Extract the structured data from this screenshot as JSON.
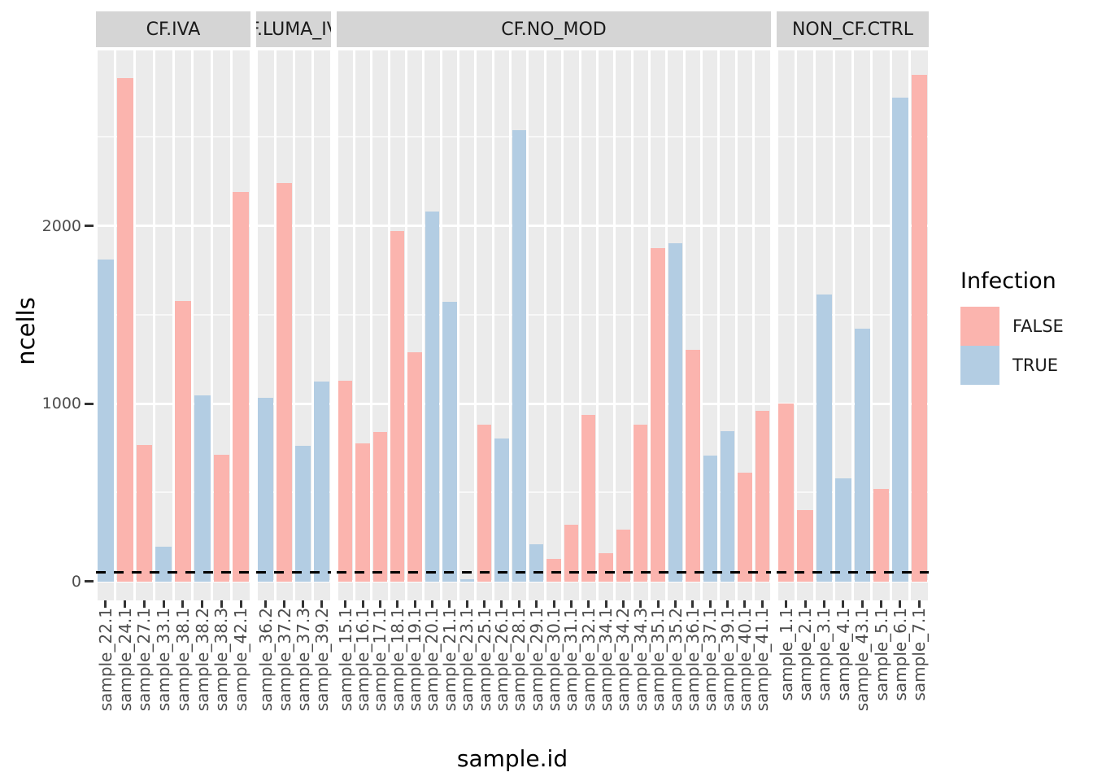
{
  "chart_data": {
    "type": "bar",
    "title": "",
    "xlabel": "sample.id",
    "ylabel": "ncells",
    "y_ticks": [
      0,
      1000,
      2000
    ],
    "ylim": [
      0,
      2990
    ],
    "grid": {
      "major": "white",
      "minor": "white-faint",
      "panel_background": "#ebebeb"
    },
    "threshold_line": {
      "y": 50,
      "style": "dashed",
      "color": "#000000"
    },
    "legend": {
      "title": "Infection",
      "position": "right",
      "entries": [
        {
          "label": "FALSE",
          "color": "#FBB4AE"
        },
        {
          "label": "TRUE",
          "color": "#B3CDE3"
        }
      ]
    },
    "facets": [
      {
        "label": "CF.IVA",
        "bars": [
          {
            "x": "sample_22.1",
            "y": 1810,
            "infection": "TRUE"
          },
          {
            "x": "sample_24.1",
            "y": 2830,
            "infection": "FALSE"
          },
          {
            "x": "sample_27.1",
            "y": 765,
            "infection": "FALSE"
          },
          {
            "x": "sample_33.1",
            "y": 195,
            "infection": "TRUE"
          },
          {
            "x": "sample_38.1",
            "y": 1575,
            "infection": "FALSE"
          },
          {
            "x": "sample_38.2",
            "y": 1045,
            "infection": "TRUE"
          },
          {
            "x": "sample_38.3",
            "y": 710,
            "infection": "FALSE"
          },
          {
            "x": "sample_42.1",
            "y": 2190,
            "infection": "FALSE"
          }
        ]
      },
      {
        "label": "CF.LUMA_IVA",
        "label_clipped_display": ".LUMA_I",
        "bars": [
          {
            "x": "sample_36.2",
            "y": 1030,
            "infection": "TRUE"
          },
          {
            "x": "sample_37.2",
            "y": 2240,
            "infection": "FALSE"
          },
          {
            "x": "sample_37.3",
            "y": 760,
            "infection": "TRUE"
          },
          {
            "x": "sample_39.2",
            "y": 1125,
            "infection": "TRUE"
          }
        ]
      },
      {
        "label": "CF.NO_MOD",
        "bars": [
          {
            "x": "sample_15.1",
            "y": 1130,
            "infection": "FALSE"
          },
          {
            "x": "sample_16.1",
            "y": 775,
            "infection": "FALSE"
          },
          {
            "x": "sample_17.1",
            "y": 840,
            "infection": "FALSE"
          },
          {
            "x": "sample_18.1",
            "y": 1970,
            "infection": "FALSE"
          },
          {
            "x": "sample_19.1",
            "y": 1290,
            "infection": "FALSE"
          },
          {
            "x": "sample_20.1",
            "y": 2080,
            "infection": "TRUE"
          },
          {
            "x": "sample_21.1",
            "y": 1570,
            "infection": "TRUE"
          },
          {
            "x": "sample_23.1",
            "y": 10,
            "infection": "TRUE"
          },
          {
            "x": "sample_25.1",
            "y": 880,
            "infection": "FALSE"
          },
          {
            "x": "sample_26.1",
            "y": 805,
            "infection": "TRUE"
          },
          {
            "x": "sample_28.1",
            "y": 2540,
            "infection": "TRUE"
          },
          {
            "x": "sample_29.1",
            "y": 210,
            "infection": "TRUE"
          },
          {
            "x": "sample_30.1",
            "y": 125,
            "infection": "FALSE"
          },
          {
            "x": "sample_31.1",
            "y": 320,
            "infection": "FALSE"
          },
          {
            "x": "sample_32.1",
            "y": 935,
            "infection": "FALSE"
          },
          {
            "x": "sample_34.1",
            "y": 160,
            "infection": "FALSE"
          },
          {
            "x": "sample_34.2",
            "y": 290,
            "infection": "FALSE"
          },
          {
            "x": "sample_34.3",
            "y": 880,
            "infection": "FALSE"
          },
          {
            "x": "sample_35.1",
            "y": 1875,
            "infection": "FALSE"
          },
          {
            "x": "sample_35.2",
            "y": 1900,
            "infection": "TRUE"
          },
          {
            "x": "sample_36.1",
            "y": 1300,
            "infection": "FALSE"
          },
          {
            "x": "sample_37.1",
            "y": 705,
            "infection": "TRUE"
          },
          {
            "x": "sample_39.1",
            "y": 845,
            "infection": "TRUE"
          },
          {
            "x": "sample_40.1",
            "y": 610,
            "infection": "FALSE"
          },
          {
            "x": "sample_41.1",
            "y": 960,
            "infection": "FALSE"
          }
        ]
      },
      {
        "label": "NON_CF.CTRL",
        "bars": [
          {
            "x": "sample_1.1",
            "y": 1000,
            "infection": "FALSE"
          },
          {
            "x": "sample_2.1",
            "y": 400,
            "infection": "FALSE"
          },
          {
            "x": "sample_3.1",
            "y": 1615,
            "infection": "TRUE"
          },
          {
            "x": "sample_4.1",
            "y": 580,
            "infection": "TRUE"
          },
          {
            "x": "sample_43.1",
            "y": 1420,
            "infection": "TRUE"
          },
          {
            "x": "sample_5.1",
            "y": 520,
            "infection": "FALSE"
          },
          {
            "x": "sample_6.1",
            "y": 2720,
            "infection": "TRUE"
          },
          {
            "x": "sample_7.1",
            "y": 2850,
            "infection": "FALSE"
          }
        ]
      }
    ]
  },
  "colors": {
    "false_fill": "#FBB4AE",
    "true_fill": "#B3CDE3",
    "panel_bg": "#ebebeb",
    "strip_bg": "#d5d5d5",
    "gridline": "#ffffff",
    "tick_text": "#4d4d4d",
    "tick_mark": "#333333",
    "threshold": "#000000"
  }
}
